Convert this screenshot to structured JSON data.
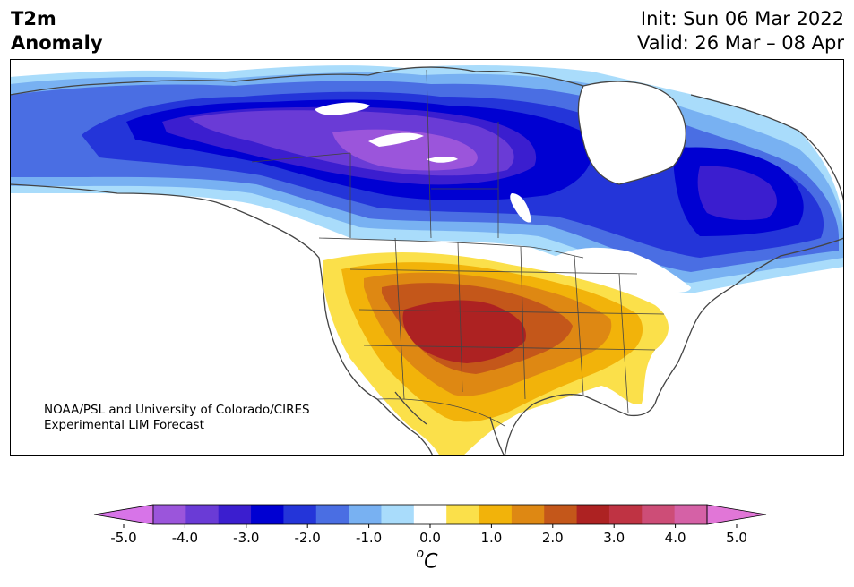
{
  "header": {
    "title_line1": "T2m",
    "title_line2": "Anomaly",
    "init": "Init: Sun 06 Mar 2022",
    "valid": "Valid: 26 Mar – 08 Apr"
  },
  "credit": {
    "line1": "NOAA/PSL and University of Colorado/CIRES",
    "line2": "Experimental LIM Forecast"
  },
  "colorbar": {
    "unit_prefix": "o",
    "unit_main": "C",
    "tick_labels": [
      "-5.0",
      "-4.0",
      "-3.0",
      "-2.0",
      "-1.0",
      "0.0",
      "1.0",
      "2.0",
      "3.0",
      "4.0",
      "5.0"
    ],
    "tick_values": [
      -5,
      -4,
      -3,
      -2,
      -1,
      0,
      1,
      2,
      3,
      4,
      5
    ],
    "range": [
      -5,
      5
    ],
    "colors": [
      "#d774e8",
      "#9b55db",
      "#6a3bd6",
      "#3b1ecf",
      "#0000d2",
      "#2435d9",
      "#4a6ee3",
      "#78b1f2",
      "#a9dcfb",
      "#ffffff",
      "#fbe04a",
      "#f2b30a",
      "#de8813",
      "#c4571a",
      "#ad2222",
      "#bf3343",
      "#cd4d77",
      "#d561a6",
      "#e176d7"
    ]
  },
  "map": {
    "projection": "Lambert conformal (North America)",
    "land_color": "#ffffff",
    "border_color": "#444444"
  }
}
